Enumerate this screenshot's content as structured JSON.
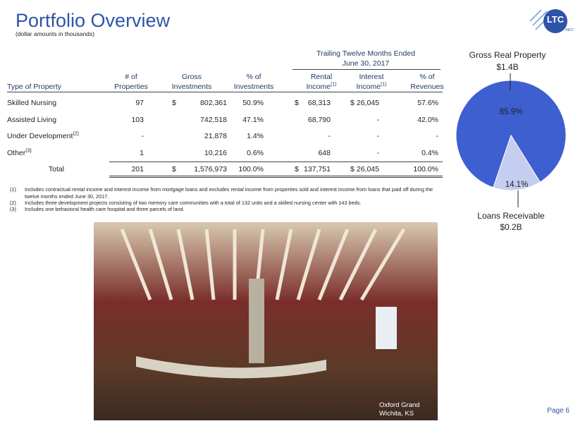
{
  "header": {
    "title": "Portfolio Overview",
    "subtitle": "(dollar amounts in thousands)"
  },
  "logo": {
    "text": "LTC",
    "subtext": "REIT"
  },
  "table": {
    "group_header": [
      "Trailing Twelve Months Ended",
      "June 30, 2017"
    ],
    "columns": [
      {
        "lines": [
          "Type of Property"
        ]
      },
      {
        "lines": [
          "# of",
          "Properties"
        ]
      },
      {
        "lines": [
          "Gross",
          "Investments"
        ]
      },
      {
        "lines": [
          "% of",
          "Investments"
        ]
      },
      {
        "lines": [
          "Rental",
          "Income"
        ],
        "note": "(1)"
      },
      {
        "lines": [
          "Interest",
          "Income"
        ],
        "note": "(1)"
      },
      {
        "lines": [
          "% of",
          "Revenues"
        ]
      }
    ],
    "rows": [
      {
        "label": "Skilled Nursing",
        "cells": [
          "97",
          [
            "$",
            "802,361"
          ],
          "50.9%",
          [
            "$",
            "68,313"
          ],
          [
            "$",
            "26,045"
          ],
          "57.6%"
        ]
      },
      {
        "label": "Assisted Living",
        "cells": [
          "103",
          "742,518",
          "47.1%",
          "68,790",
          "-",
          "42.0%"
        ]
      },
      {
        "label": "Under Development",
        "note": "(2)",
        "cells": [
          "-",
          "21,878",
          "1.4%",
          "-",
          "-",
          "-"
        ]
      },
      {
        "label": "Other",
        "note": "(3)",
        "cells": [
          "1",
          "10,216",
          "0.6%",
          "648",
          "-",
          "0.4%"
        ]
      }
    ],
    "total": {
      "label": "Total",
      "cells": [
        "201",
        [
          "$",
          "1,576,973"
        ],
        "100.0%",
        [
          "$",
          "137,751"
        ],
        [
          "$",
          "26,045"
        ],
        "100.0%"
      ]
    }
  },
  "footnotes": [
    {
      "mark": "(1)",
      "text": "Includes contractual rental income and interest income from mortgage loans and excludes rental income from properties sold and interest income from loans that paid off during the twelve months ended June 30, 2017."
    },
    {
      "mark": "(2)",
      "text": "Includes three development projects consisting of two memory care communities with a total of 132 units and a skilled nursing center with 143 beds."
    },
    {
      "mark": "(3)",
      "text": "Includes one behavioral health care hospital and three parcels of land."
    }
  ],
  "pie": {
    "slices": [
      {
        "name": "Gross Real Property",
        "amount": "$1.4B",
        "value": 85.9,
        "value_label": "85.9%",
        "color": "#3d5fd0"
      },
      {
        "name": "Loans Receivable",
        "amount": "$0.2B",
        "value": 14.1,
        "value_label": "14.1%",
        "color": "#c5cdf0"
      }
    ]
  },
  "photo": {
    "caption": [
      "Oxford Grand",
      "Wichita, KS"
    ]
  },
  "footer": {
    "page": "Page 6"
  }
}
